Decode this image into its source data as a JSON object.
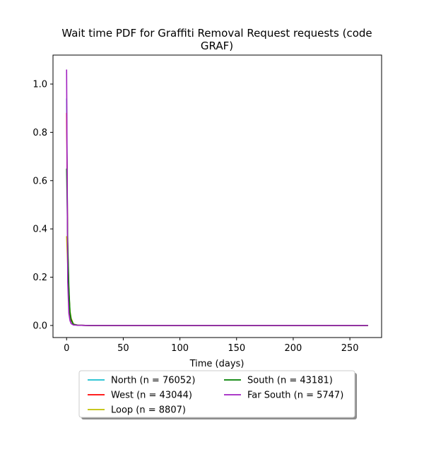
{
  "chart_data": {
    "type": "line",
    "title": "Wait time PDF for Graffiti Removal Request  requests (code GRAF)",
    "title_lines": [
      "Wait time PDF for Graffiti Removal Request  requests (code",
      "GRAF)"
    ],
    "xlabel": "Time (days)",
    "ylabel": "",
    "xlim": [
      -12,
      278
    ],
    "ylim": [
      -0.05,
      1.12
    ],
    "xticks": [
      0,
      50,
      100,
      150,
      200,
      250
    ],
    "xtick_labels": [
      "0",
      "50",
      "100",
      "150",
      "200",
      "250"
    ],
    "yticks": [
      0.0,
      0.2,
      0.4,
      0.6,
      0.8,
      1.0
    ],
    "ytick_labels": [
      "0.0",
      "0.2",
      "0.4",
      "0.6",
      "0.8",
      "1.0"
    ],
    "grid": false,
    "legend_placement": "below the plot, center",
    "legend_columns": 2,
    "series": [
      {
        "name": "North (n = 76052)",
        "color": "#17becf",
        "x": [
          0,
          1,
          2,
          3,
          4,
          6,
          10,
          20,
          50,
          100,
          150,
          200,
          266
        ],
        "y": [
          0.94,
          0.3,
          0.12,
          0.045,
          0.02,
          0.004,
          0.001,
          0.0,
          0.0,
          0.0,
          0.0,
          0.0,
          0.0
        ]
      },
      {
        "name": "West (n = 43044)",
        "color": "#ff0000",
        "x": [
          0,
          1,
          2,
          3,
          4,
          6,
          10,
          20,
          50,
          100,
          150,
          200,
          266
        ],
        "y": [
          0.88,
          0.32,
          0.14,
          0.05,
          0.022,
          0.004,
          0.001,
          0.0,
          0.0,
          0.0,
          0.0,
          0.0,
          0.0
        ]
      },
      {
        "name": "Loop (n = 8807)",
        "color": "#bfbf00",
        "x": [
          0,
          1,
          2,
          3,
          4,
          6,
          10,
          20,
          50,
          100,
          150,
          200,
          266
        ],
        "y": [
          0.37,
          0.25,
          0.14,
          0.06,
          0.03,
          0.006,
          0.001,
          0.0,
          0.0,
          0.0,
          0.0,
          0.0,
          0.0
        ]
      },
      {
        "name": "South (n = 43181)",
        "color": "#008000",
        "x": [
          0,
          1,
          2,
          3,
          4,
          6,
          10,
          20,
          50,
          100,
          150,
          200,
          266
        ],
        "y": [
          0.65,
          0.35,
          0.16,
          0.055,
          0.025,
          0.005,
          0.001,
          0.0,
          0.0,
          0.0,
          0.0,
          0.0,
          0.0
        ]
      },
      {
        "name": "Far South (n = 5747)",
        "color": "#a020c0",
        "x": [
          0,
          1,
          2,
          3,
          4,
          6,
          10,
          20,
          50,
          100,
          150,
          200,
          266
        ],
        "y": [
          1.06,
          0.18,
          0.05,
          0.02,
          0.008,
          0.002,
          0.001,
          0.0,
          0.0,
          0.0,
          0.0,
          0.0,
          0.0
        ]
      }
    ],
    "legend_order": [
      "North (n = 76052)",
      "West (n = 43044)",
      "Loop (n = 8807)",
      "South (n = 43181)",
      "Far South (n = 5747)"
    ]
  }
}
